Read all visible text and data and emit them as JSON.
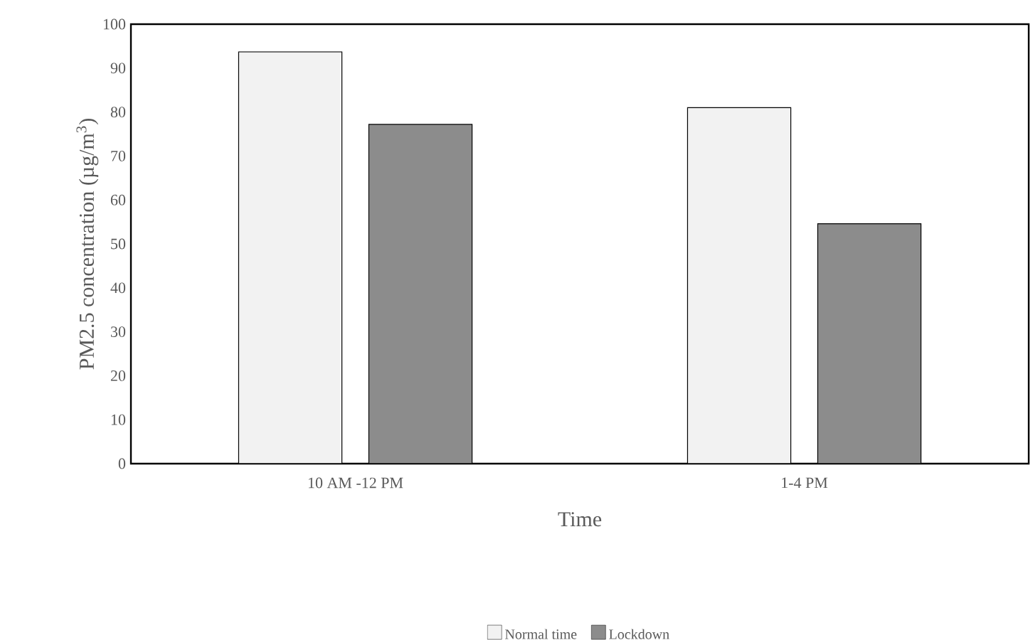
{
  "chart_data": {
    "type": "bar",
    "xlabel": "Time",
    "ylabel": "PM2.5 concentration (µg/m$^{3}$)",
    "categories": [
      "10 AM -12 PM",
      "1-4 PM"
    ],
    "series": [
      {
        "name": "Normal time",
        "color": "#f2f2f2",
        "values": [
          93.7,
          81.0
        ]
      },
      {
        "name": "Lockdown",
        "color": "#8c8c8c",
        "values": [
          77.2,
          54.6
        ]
      }
    ],
    "ylim": [
      0,
      100
    ],
    "yticks": [
      0,
      10,
      20,
      30,
      40,
      50,
      60,
      70,
      80,
      90,
      100
    ],
    "legend": "bottom"
  }
}
